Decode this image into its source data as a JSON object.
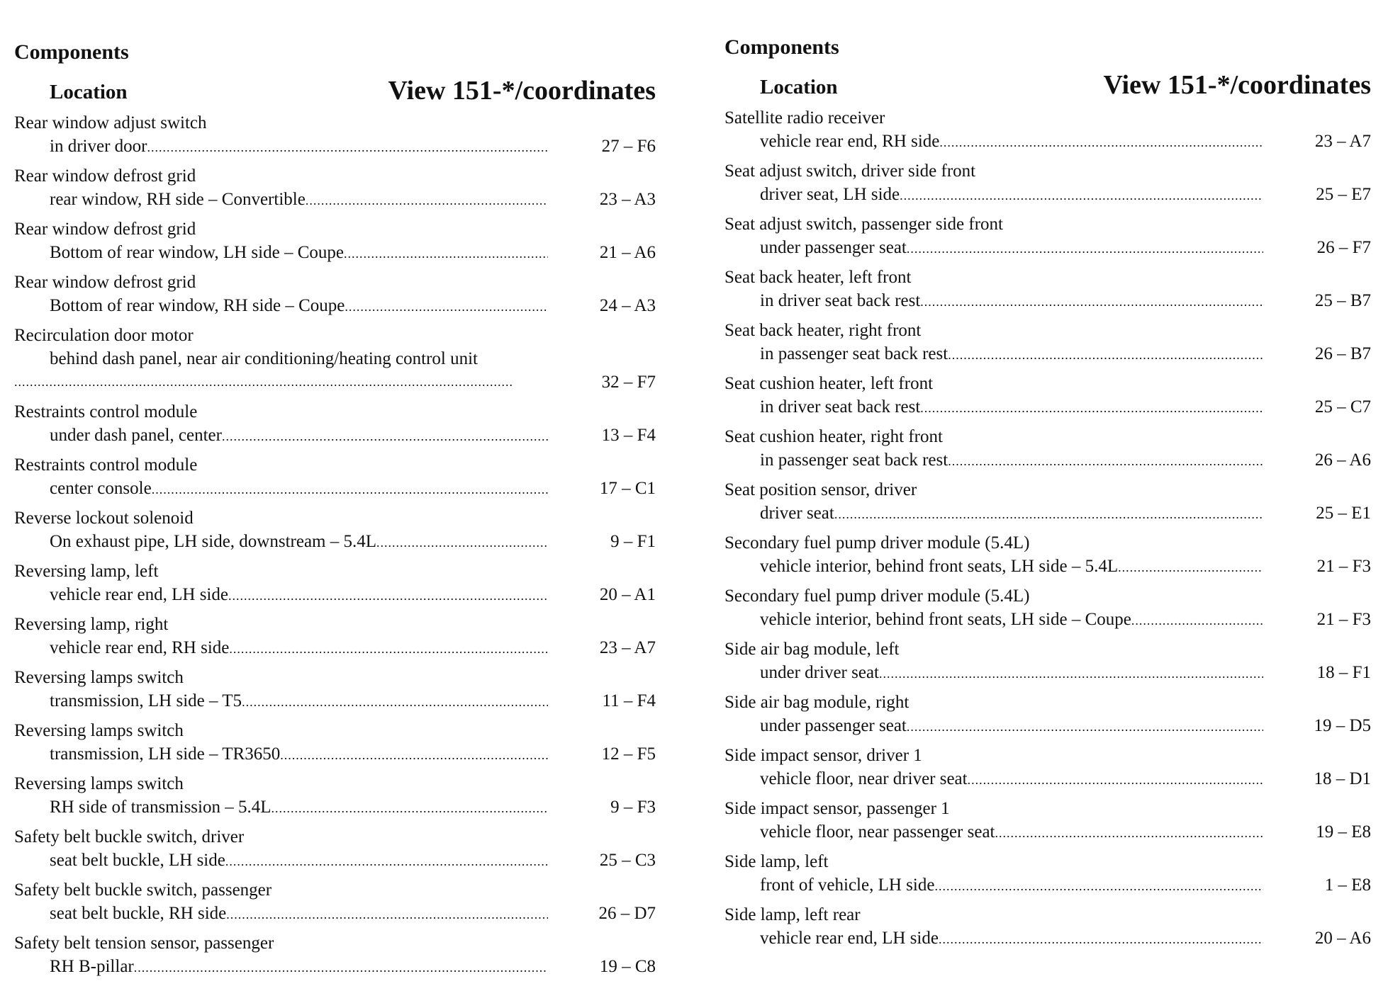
{
  "left": {
    "heading": "Components",
    "location_label": "Location",
    "view_label": "View 151-*/coordinates",
    "entries": [
      {
        "name": "Rear window adjust switch",
        "location": "in driver door",
        "coord": "27 – F6"
      },
      {
        "name": "Rear window defrost grid",
        "location": "rear window, RH side – Convertible",
        "coord": "23 – A3"
      },
      {
        "name": "Rear window defrost grid",
        "location": "Bottom of rear window, LH side – Coupe",
        "coord": "21 – A6"
      },
      {
        "name": "Rear window defrost grid",
        "location": "Bottom of rear window, RH side – Coupe",
        "coord": "24 – A3"
      },
      {
        "name": "Recirculation door motor",
        "location": "behind dash panel, near air conditioning/heating control unit",
        "coord": "32 – F7",
        "wrap": true
      },
      {
        "name": "Restraints control module",
        "location": "under dash panel, center",
        "coord": "13 – F4"
      },
      {
        "name": "Restraints control module",
        "location": "center console",
        "coord": "17 – C1"
      },
      {
        "name": "Reverse lockout solenoid",
        "location": "On exhaust pipe, LH side, downstream – 5.4L",
        "coord": "9 – F1"
      },
      {
        "name": "Reversing lamp, left",
        "location": "vehicle rear end, LH side",
        "coord": "20 – A1"
      },
      {
        "name": "Reversing lamp, right",
        "location": "vehicle rear end, RH side",
        "coord": "23 – A7"
      },
      {
        "name": "Reversing lamps switch",
        "location": "transmission, LH side – T5",
        "coord": "11 – F4"
      },
      {
        "name": "Reversing lamps switch",
        "location": "transmission, LH side – TR3650",
        "coord": "12 – F5"
      },
      {
        "name": "Reversing lamps switch",
        "location": "RH side of transmission – 5.4L",
        "coord": "9 – F3"
      },
      {
        "name": "Safety belt buckle switch, driver",
        "location": "seat belt buckle, LH side",
        "coord": "25 – C3"
      },
      {
        "name": "Safety belt buckle switch, passenger",
        "location": "seat belt buckle, RH side",
        "coord": "26 – D7"
      },
      {
        "name": "Safety belt tension sensor, passenger",
        "location": "RH B-pillar",
        "coord": "19 – C8"
      }
    ]
  },
  "right": {
    "heading": "Components",
    "location_label": "Location",
    "view_label": "View 151-*/coordinates",
    "entries": [
      {
        "name": "Satellite radio receiver",
        "location": "vehicle rear end, RH side",
        "coord": "23 – A7"
      },
      {
        "name": "Seat adjust switch, driver side front",
        "location": "driver seat, LH side",
        "coord": "25 – E7"
      },
      {
        "name": "Seat adjust switch, passenger side front",
        "location": "under passenger seat",
        "coord": "26 – F7"
      },
      {
        "name": "Seat back heater, left front",
        "location": "in driver seat back rest",
        "coord": "25 – B7"
      },
      {
        "name": "Seat back heater, right front",
        "location": "in passenger seat back rest",
        "coord": "26 – B7"
      },
      {
        "name": "Seat cushion heater, left front",
        "location": "in driver seat back rest",
        "coord": "25 – C7"
      },
      {
        "name": "Seat cushion heater, right front",
        "location": "in passenger seat back rest",
        "coord": "26 – A6"
      },
      {
        "name": "Seat position sensor, driver",
        "location": "driver seat",
        "coord": "25 – E1"
      },
      {
        "name": "Secondary fuel pump driver module (5.4L)",
        "location": "vehicle interior, behind front seats, LH side – 5.4L",
        "coord": "21 – F3"
      },
      {
        "name": "Secondary fuel pump driver module (5.4L)",
        "location": "vehicle interior, behind front seats, LH side – Coupe",
        "coord": "21 – F3"
      },
      {
        "name": "Side air bag module, left",
        "location": "under driver seat",
        "coord": "18 – F1"
      },
      {
        "name": "Side air bag module, right",
        "location": "under passenger seat",
        "coord": "19 – D5"
      },
      {
        "name": "Side impact sensor, driver 1",
        "location": "vehicle floor, near driver seat",
        "coord": "18 – D1"
      },
      {
        "name": "Side impact sensor, passenger 1",
        "location": "vehicle floor, near passenger seat",
        "coord": "19 – E8"
      },
      {
        "name": "Side lamp, left",
        "location": "front of vehicle, LH side",
        "coord": "1 – E8"
      },
      {
        "name": "Side lamp, left rear",
        "location": "vehicle rear end, LH side",
        "coord": "20 – A6"
      }
    ]
  }
}
